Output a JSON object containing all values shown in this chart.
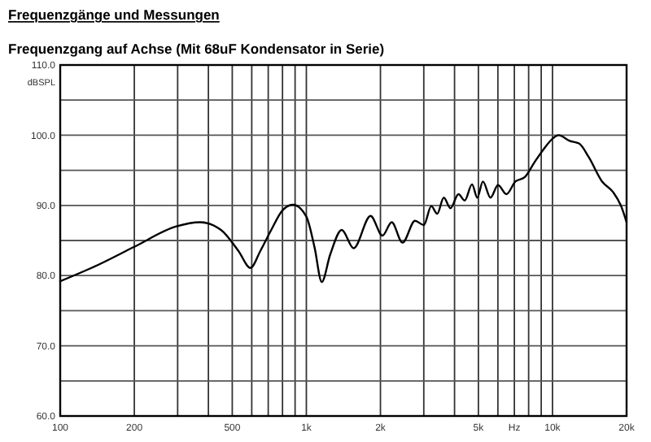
{
  "chart_data": {
    "type": "line",
    "title": "Frequenzgänge und Messungen",
    "subtitle": "Frequenzgang auf Achse (Mit 68uF Kondensator in Serie)",
    "ylabel": "dBSPL",
    "log": "x",
    "grid": true,
    "marker": "none",
    "line_style": "solid",
    "xlim": [
      100,
      20000
    ],
    "ylim": [
      60,
      110
    ],
    "xticks": [
      100,
      {
        "value": 200,
        "label": "200"
      },
      {
        "value": 300,
        "label": null
      },
      {
        "value": 400,
        "label": null
      },
      {
        "value": 500,
        "label": "500"
      },
      {
        "value": 600,
        "label": null
      },
      {
        "value": 700,
        "label": null
      },
      {
        "value": 800,
        "label": null
      },
      {
        "value": 900,
        "label": null
      },
      {
        "value": 1000,
        "label": "1k"
      },
      {
        "value": 2000,
        "label": "2k"
      },
      {
        "value": 3000,
        "label": null
      },
      {
        "value": 4000,
        "label": null
      },
      {
        "value": 5000,
        "label": "5k"
      },
      {
        "value": 6000,
        "label": null
      },
      {
        "value": 7000,
        "label": "Hz"
      },
      {
        "value": 8000,
        "label": null
      },
      {
        "value": 9000,
        "label": null
      },
      {
        "value": 10000,
        "label": "10k"
      },
      {
        "value": 20000,
        "label": "20k"
      }
    ],
    "yticks": [
      {
        "value": 60,
        "label": "60.0"
      },
      {
        "value": 65,
        "label": null
      },
      {
        "value": 70,
        "label": "70.0"
      },
      {
        "value": 75,
        "label": null
      },
      {
        "value": 80,
        "label": "80.0"
      },
      {
        "value": 85,
        "label": null
      },
      {
        "value": 90,
        "label": "90.0"
      },
      {
        "value": 95,
        "label": null
      },
      {
        "value": 100,
        "label": "100.0"
      },
      {
        "value": 105,
        "label": null
      },
      {
        "value": 110,
        "label": "110.0"
      }
    ],
    "series": [
      {
        "color": "#000000",
        "x": [
          100,
          142,
          200,
          296,
          370,
          450,
          530,
          593,
          650,
          720,
          800,
          882,
          1000,
          1080,
          1155,
          1250,
          1393,
          1556,
          1823,
          2038,
          2222,
          2459,
          2763,
          3000,
          3218,
          3400,
          3617,
          3850,
          4149,
          4400,
          4710,
          4950,
          5214,
          5600,
          6006,
          6500,
          7066,
          7700,
          8434,
          9200,
          10075,
          10597,
          11740,
          12850,
          14025,
          15910,
          17620,
          19000,
          20000
        ],
        "values": [
          79.2,
          81.5,
          84.1,
          87.0,
          87.6,
          86.5,
          83.5,
          81.1,
          83.5,
          86.5,
          89.3,
          90.1,
          88.4,
          84.0,
          79.1,
          83.0,
          86.5,
          83.9,
          88.5,
          85.7,
          87.6,
          84.7,
          87.8,
          87.2,
          89.9,
          88.8,
          91.1,
          89.6,
          91.6,
          90.7,
          93.0,
          91.1,
          93.4,
          91.1,
          92.9,
          91.6,
          93.4,
          94.0,
          96.1,
          98.0,
          99.6,
          100.0,
          99.2,
          98.8,
          96.9,
          93.4,
          91.9,
          89.9,
          87.6
        ]
      }
    ]
  }
}
